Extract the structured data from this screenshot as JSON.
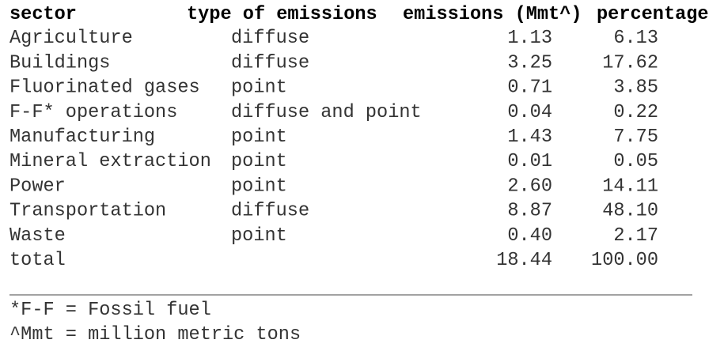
{
  "table": {
    "columns": [
      "sector",
      "type of emissions",
      "emissions (Mmt^)",
      "percentage"
    ],
    "rows": [
      [
        "Agriculture",
        "diffuse",
        "1.13",
        "6.13"
      ],
      [
        "Buildings",
        "diffuse",
        "3.25",
        "17.62"
      ],
      [
        "Fluorinated gases",
        "point",
        "0.71",
        "3.85"
      ],
      [
        "F-F* operations",
        "diffuse and point",
        "0.04",
        "0.22"
      ],
      [
        "Manufacturing",
        "point",
        "1.43",
        "7.75"
      ],
      [
        "Mineral extraction",
        "point",
        "0.01",
        "0.05"
      ],
      [
        "Power",
        "point",
        "2.60",
        "14.11"
      ],
      [
        "Transportation",
        "diffuse",
        "8.87",
        "48.10"
      ],
      [
        "Waste",
        "point",
        "0.40",
        "2.17"
      ],
      [
        "total",
        null,
        "18.44",
        "100.00"
      ]
    ]
  },
  "footnotes": [
    "*F-F = Fossil fuel",
    "^Mmt = million metric tons"
  ]
}
